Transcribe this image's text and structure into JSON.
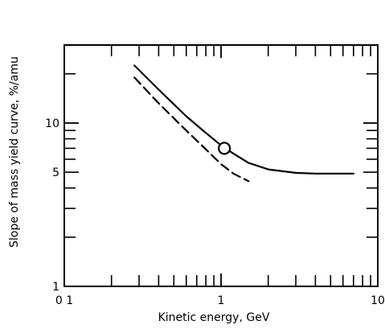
{
  "chart_data": {
    "type": "line",
    "title": "",
    "xlabel": "Kinetic energy, GeV",
    "ylabel": "Slope of mass yield curve, %/amu",
    "xscale": "log",
    "yscale": "log",
    "xlim": [
      0.1,
      10
    ],
    "ylim": [
      1,
      30
    ],
    "x_tick_labels": [
      {
        "value": 0.1,
        "label": "0 1"
      },
      {
        "value": 1,
        "label": "1"
      },
      {
        "value": 10,
        "label": "10"
      }
    ],
    "y_tick_labels": [
      {
        "value": 1,
        "label": "1"
      },
      {
        "value": 5,
        "label": "5"
      },
      {
        "value": 10,
        "label": "10"
      }
    ],
    "series": [
      {
        "style": "solid",
        "color": "#000000",
        "x": [
          0.28,
          0.4,
          0.6,
          0.8,
          1.0,
          1.2,
          1.5,
          2.0,
          3.0,
          4.0,
          5.0,
          7.0
        ],
        "y": [
          22.5,
          16.0,
          11.0,
          8.7,
          7.3,
          6.5,
          5.7,
          5.2,
          4.95,
          4.9,
          4.9,
          4.9
        ]
      },
      {
        "style": "dashed",
        "color": "#000000",
        "x": [
          0.28,
          0.4,
          0.6,
          0.8,
          1.0,
          1.2,
          1.5
        ],
        "y": [
          19.0,
          13.2,
          9.0,
          6.9,
          5.6,
          4.9,
          4.4
        ]
      }
    ],
    "markers": [
      {
        "x": 1.05,
        "y": 7.0,
        "shape": "open-circle"
      }
    ],
    "grid": false
  }
}
